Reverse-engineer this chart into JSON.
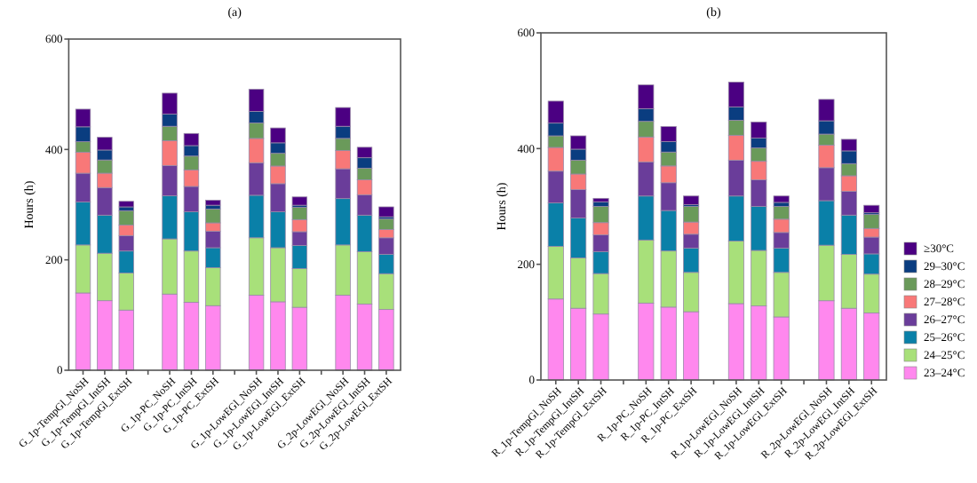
{
  "chart_data": [
    {
      "type": "bar",
      "title": "(a)",
      "ylabel": "Hours (h)",
      "stacked": true,
      "ylim": [
        0,
        600
      ],
      "yticks": [
        0,
        200,
        400,
        600
      ],
      "categories": [
        "G_1p-TempGl_NoSH",
        "G_1p-TempGl_IntSH",
        "G_1p-TempGl_ExtSH",
        null,
        "G_1p-PC_NoSH",
        "G_1p-PC_IntSH",
        "G_1p-PC_ExtSH",
        null,
        "G_1p-LowEGl_NoSH",
        "G_1p-LowEGl_IntSH",
        "G_1p-LowEGl_ExtSH",
        null,
        "G_2p-LowEGl_NoSH",
        "G_2p-LowEGl_IntSH",
        "G_2p-LowEGl_ExtSH"
      ],
      "series": [
        {
          "color": "#ff88ee",
          "values": [
            140,
            126,
            109,
            null,
            138,
            123,
            117,
            null,
            136,
            124,
            114,
            null,
            136,
            120,
            110
          ]
        },
        {
          "color": "#a8e07a",
          "values": [
            87,
            86,
            67,
            null,
            100,
            93,
            69,
            null,
            104,
            98,
            70,
            null,
            91,
            95,
            65
          ]
        },
        {
          "color": "#0a80a8",
          "values": [
            78,
            69,
            40,
            null,
            78,
            71,
            36,
            null,
            77,
            65,
            42,
            null,
            84,
            66,
            35
          ]
        },
        {
          "color": "#6a3d9a",
          "values": [
            52,
            50,
            28,
            null,
            55,
            46,
            30,
            null,
            59,
            51,
            25,
            null,
            54,
            37,
            30
          ]
        },
        {
          "color": "#f87878",
          "values": [
            38,
            26,
            19,
            null,
            45,
            30,
            15,
            null,
            44,
            32,
            22,
            null,
            33,
            27,
            15
          ]
        },
        {
          "color": "#6a9a5a",
          "values": [
            19,
            24,
            26,
            null,
            26,
            25,
            25,
            null,
            28,
            23,
            22,
            null,
            22,
            21,
            19
          ]
        },
        {
          "color": "#0a3d80",
          "values": [
            27,
            18,
            7,
            null,
            22,
            19,
            7,
            null,
            21,
            19,
            4,
            null,
            22,
            19,
            4
          ]
        },
        {
          "color": "#4b0082",
          "values": [
            32,
            23,
            10,
            null,
            38,
            22,
            9,
            null,
            40,
            27,
            15,
            null,
            34,
            19,
            18
          ]
        }
      ]
    },
    {
      "type": "bar",
      "title": "(b)",
      "ylabel": "Hours (h)",
      "stacked": true,
      "ylim": [
        0,
        600
      ],
      "yticks": [
        0,
        200,
        400,
        600
      ],
      "legend": "bottom right",
      "categories": [
        "R_1p-TempGl_NoSH",
        "R_1p-TempGl_IntSH",
        "R_1p-TempGl_ExtSH",
        null,
        "R_1p-PC_NoSH",
        "R_1p-PC_IntSH",
        "R_1p-PC_ExtSH",
        null,
        "R_1p-LowEGl_NoSH",
        "R_1p-LowEGl_IntSH",
        "R_1p-LowEGl_ExtSH",
        null,
        "R_2p-LowEGl_NoSH",
        "R_2p-LowEGl_IntSH",
        "R_2p-LowEGl_ExtSH"
      ],
      "series": [
        {
          "name": "23–24°C",
          "color": "#ff88ee",
          "values": [
            140,
            124,
            114,
            null,
            133,
            126,
            118,
            null,
            132,
            128,
            109,
            null,
            137,
            124,
            116
          ]
        },
        {
          "name": "24–25°C",
          "color": "#a8e07a",
          "values": [
            91,
            87,
            70,
            null,
            109,
            97,
            68,
            null,
            108,
            96,
            77,
            null,
            96,
            93,
            67
          ]
        },
        {
          "name": "25–26°C",
          "color": "#0a80a8",
          "values": [
            75,
            69,
            38,
            null,
            76,
            70,
            42,
            null,
            78,
            76,
            42,
            null,
            77,
            68,
            35
          ]
        },
        {
          "name": "26–27°C",
          "color": "#6a3d9a",
          "values": [
            55,
            49,
            29,
            null,
            59,
            48,
            24,
            null,
            62,
            46,
            27,
            null,
            57,
            41,
            29
          ]
        },
        {
          "name": "27–28°C",
          "color": "#f87878",
          "values": [
            41,
            27,
            21,
            null,
            43,
            29,
            21,
            null,
            43,
            32,
            23,
            null,
            39,
            27,
            15
          ]
        },
        {
          "name": "28–29°C",
          "color": "#6a9a5a",
          "values": [
            20,
            24,
            28,
            null,
            27,
            24,
            27,
            null,
            26,
            23,
            22,
            null,
            19,
            21,
            24
          ]
        },
        {
          "name": "29–30°C",
          "color": "#0a3d80",
          "values": [
            22,
            19,
            8,
            null,
            22,
            18,
            3,
            null,
            23,
            17,
            7,
            null,
            23,
            22,
            3
          ]
        },
        {
          "name": "≥30°C",
          "color": "#4b0082",
          "values": [
            38,
            23,
            6,
            null,
            41,
            26,
            15,
            null,
            43,
            28,
            11,
            null,
            37,
            20,
            13
          ]
        }
      ]
    }
  ]
}
